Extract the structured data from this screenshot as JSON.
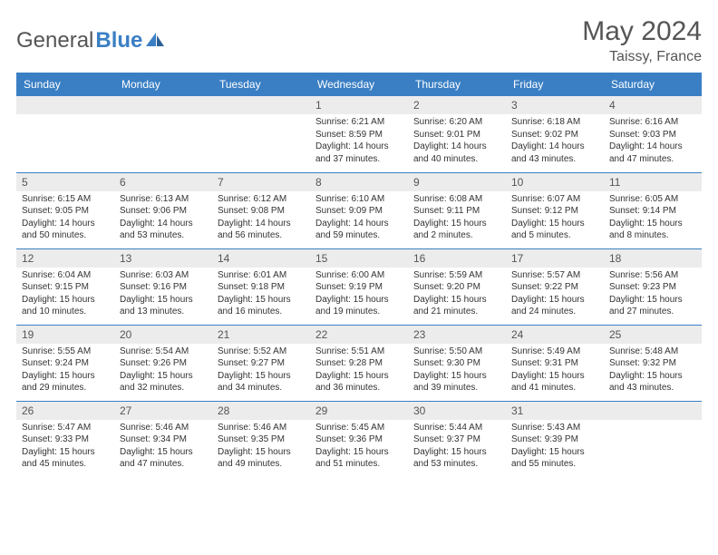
{
  "brand": {
    "part1": "General",
    "part2": "Blue"
  },
  "title": "May 2024",
  "location": "Taissy, France",
  "colors": {
    "accent": "#3a7fc4",
    "header_bg": "#3a7fc4",
    "header_text": "#ffffff",
    "daynum_bg": "#ececec",
    "row_divider": "#3a7fc4"
  },
  "day_headers": [
    "Sunday",
    "Monday",
    "Tuesday",
    "Wednesday",
    "Thursday",
    "Friday",
    "Saturday"
  ],
  "weeks": [
    [
      null,
      null,
      null,
      {
        "n": "1",
        "sr": "6:21 AM",
        "ss": "8:59 PM",
        "dl": "14 hours and 37 minutes."
      },
      {
        "n": "2",
        "sr": "6:20 AM",
        "ss": "9:01 PM",
        "dl": "14 hours and 40 minutes."
      },
      {
        "n": "3",
        "sr": "6:18 AM",
        "ss": "9:02 PM",
        "dl": "14 hours and 43 minutes."
      },
      {
        "n": "4",
        "sr": "6:16 AM",
        "ss": "9:03 PM",
        "dl": "14 hours and 47 minutes."
      }
    ],
    [
      {
        "n": "5",
        "sr": "6:15 AM",
        "ss": "9:05 PM",
        "dl": "14 hours and 50 minutes."
      },
      {
        "n": "6",
        "sr": "6:13 AM",
        "ss": "9:06 PM",
        "dl": "14 hours and 53 minutes."
      },
      {
        "n": "7",
        "sr": "6:12 AM",
        "ss": "9:08 PM",
        "dl": "14 hours and 56 minutes."
      },
      {
        "n": "8",
        "sr": "6:10 AM",
        "ss": "9:09 PM",
        "dl": "14 hours and 59 minutes."
      },
      {
        "n": "9",
        "sr": "6:08 AM",
        "ss": "9:11 PM",
        "dl": "15 hours and 2 minutes."
      },
      {
        "n": "10",
        "sr": "6:07 AM",
        "ss": "9:12 PM",
        "dl": "15 hours and 5 minutes."
      },
      {
        "n": "11",
        "sr": "6:05 AM",
        "ss": "9:14 PM",
        "dl": "15 hours and 8 minutes."
      }
    ],
    [
      {
        "n": "12",
        "sr": "6:04 AM",
        "ss": "9:15 PM",
        "dl": "15 hours and 10 minutes."
      },
      {
        "n": "13",
        "sr": "6:03 AM",
        "ss": "9:16 PM",
        "dl": "15 hours and 13 minutes."
      },
      {
        "n": "14",
        "sr": "6:01 AM",
        "ss": "9:18 PM",
        "dl": "15 hours and 16 minutes."
      },
      {
        "n": "15",
        "sr": "6:00 AM",
        "ss": "9:19 PM",
        "dl": "15 hours and 19 minutes."
      },
      {
        "n": "16",
        "sr": "5:59 AM",
        "ss": "9:20 PM",
        "dl": "15 hours and 21 minutes."
      },
      {
        "n": "17",
        "sr": "5:57 AM",
        "ss": "9:22 PM",
        "dl": "15 hours and 24 minutes."
      },
      {
        "n": "18",
        "sr": "5:56 AM",
        "ss": "9:23 PM",
        "dl": "15 hours and 27 minutes."
      }
    ],
    [
      {
        "n": "19",
        "sr": "5:55 AM",
        "ss": "9:24 PM",
        "dl": "15 hours and 29 minutes."
      },
      {
        "n": "20",
        "sr": "5:54 AM",
        "ss": "9:26 PM",
        "dl": "15 hours and 32 minutes."
      },
      {
        "n": "21",
        "sr": "5:52 AM",
        "ss": "9:27 PM",
        "dl": "15 hours and 34 minutes."
      },
      {
        "n": "22",
        "sr": "5:51 AM",
        "ss": "9:28 PM",
        "dl": "15 hours and 36 minutes."
      },
      {
        "n": "23",
        "sr": "5:50 AM",
        "ss": "9:30 PM",
        "dl": "15 hours and 39 minutes."
      },
      {
        "n": "24",
        "sr": "5:49 AM",
        "ss": "9:31 PM",
        "dl": "15 hours and 41 minutes."
      },
      {
        "n": "25",
        "sr": "5:48 AM",
        "ss": "9:32 PM",
        "dl": "15 hours and 43 minutes."
      }
    ],
    [
      {
        "n": "26",
        "sr": "5:47 AM",
        "ss": "9:33 PM",
        "dl": "15 hours and 45 minutes."
      },
      {
        "n": "27",
        "sr": "5:46 AM",
        "ss": "9:34 PM",
        "dl": "15 hours and 47 minutes."
      },
      {
        "n": "28",
        "sr": "5:46 AM",
        "ss": "9:35 PM",
        "dl": "15 hours and 49 minutes."
      },
      {
        "n": "29",
        "sr": "5:45 AM",
        "ss": "9:36 PM",
        "dl": "15 hours and 51 minutes."
      },
      {
        "n": "30",
        "sr": "5:44 AM",
        "ss": "9:37 PM",
        "dl": "15 hours and 53 minutes."
      },
      {
        "n": "31",
        "sr": "5:43 AM",
        "ss": "9:39 PM",
        "dl": "15 hours and 55 minutes."
      },
      null
    ]
  ],
  "labels": {
    "sunrise": "Sunrise:",
    "sunset": "Sunset:",
    "daylight": "Daylight:"
  }
}
